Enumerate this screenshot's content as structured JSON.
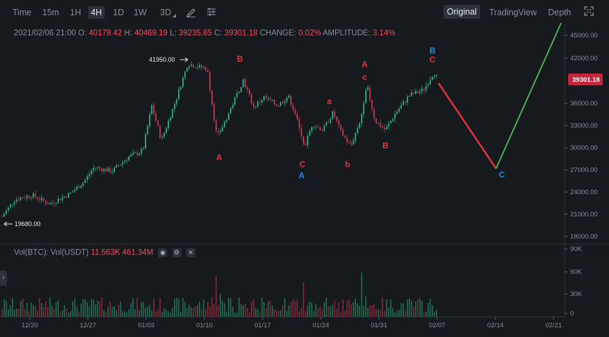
{
  "toolbar": {
    "intervals": [
      "Time",
      "15m",
      "1H",
      "4H",
      "1D",
      "1W",
      "3D"
    ],
    "active_interval": "4H",
    "views": [
      "Original",
      "TradingView",
      "Depth"
    ],
    "active_view": "Original"
  },
  "ohlc": {
    "date": "2021/02/06 21:00",
    "o_label": "O:",
    "o": "40179.42",
    "h_label": "H:",
    "h": "40469.19",
    "l_label": "L:",
    "l": "39235.65",
    "c_label": "C:",
    "c": "39301.18",
    "change_label": "CHANGE:",
    "change": "0.02%",
    "amplitude_label": "AMPLITUDE:",
    "amplitude": "3.14%"
  },
  "volume": {
    "label": "Vol(BTC):",
    "label2": "Vol(USDT)",
    "btc": "11.563K",
    "usdt": "461.34M"
  },
  "price_axis": [
    "45000.00",
    "42000.00",
    "39000.00",
    "36000.00",
    "33000.00",
    "30000.00",
    "27000.00",
    "24000.00",
    "21000.00",
    "18000.00"
  ],
  "volume_axis": [
    "90K",
    "60K",
    "30K",
    "0"
  ],
  "date_axis": [
    "12/20",
    "12/27",
    "01/03",
    "01/10",
    "01/17",
    "01/24",
    "01/31",
    "02/07",
    "02/14",
    "02/21"
  ],
  "last_price": "39301.18",
  "high_marker": "41950.00",
  "low_marker": "19680.00",
  "wave_labels": {
    "A1": "A",
    "B1": "B",
    "C1": "C",
    "A_blue1": "A",
    "a": "a",
    "b": "b",
    "A2": "A",
    "c": "c",
    "B2": "B",
    "B_blue": "B",
    "C2": "C",
    "C_blue": "C"
  },
  "colors": {
    "up": "#26a17b",
    "down": "#b0364a",
    "label_red": "#e8313b",
    "label_blue": "#1e8fd8",
    "line_red": "#e8313b",
    "line_green": "#4caf50"
  }
}
